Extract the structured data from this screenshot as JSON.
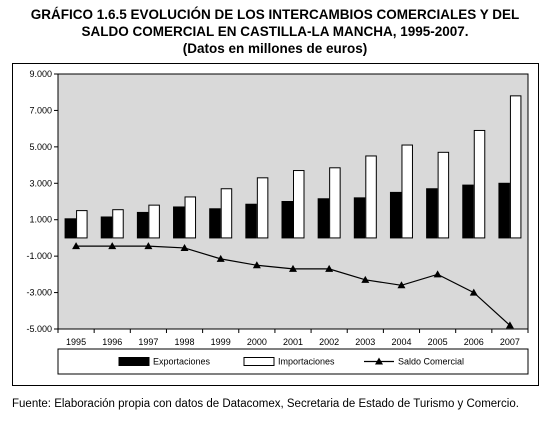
{
  "title": {
    "line1": "GRÁFICO 1.6.5 EVOLUCIÓN DE LOS INTERCAMBIOS COMERCIALES Y DEL",
    "line2": "SALDO COMERCIAL EN CASTILLA-LA MANCHA, 1995-2007.",
    "line3": "(Datos en millones de euros)"
  },
  "source": "Fuente: Elaboración propia con datos de Datacomex, Secretaria de Estado de Turismo y Comercio.",
  "chart_data": {
    "type": "bar",
    "categories": [
      "1995",
      "1996",
      "1997",
      "1998",
      "1999",
      "2000",
      "2001",
      "2002",
      "2003",
      "2004",
      "2005",
      "2006",
      "2007"
    ],
    "series": [
      {
        "name": "Exportaciones",
        "type": "bar",
        "color": "#000000",
        "values": [
          1050,
          1150,
          1400,
          1700,
          1600,
          1850,
          2000,
          2150,
          2200,
          2500,
          2700,
          2900,
          3000
        ]
      },
      {
        "name": "Importaciones",
        "type": "bar",
        "color": "#ffffff",
        "values": [
          1500,
          1550,
          1800,
          2250,
          2700,
          3300,
          3700,
          3850,
          4500,
          5100,
          4700,
          5900,
          7800
        ]
      },
      {
        "name": "Saldo Comercial",
        "type": "line",
        "marker": "triangle",
        "color": "#000000",
        "values": [
          -450,
          -450,
          -450,
          -550,
          -1150,
          -1500,
          -1700,
          -1700,
          -2300,
          -2600,
          -2000,
          -3000,
          -4800
        ]
      }
    ],
    "yticks": [
      "9.000",
      "7.000",
      "5.000",
      "3.000",
      "1.000",
      "-1.000",
      "-3.000",
      "-5.000"
    ],
    "ylim": [
      -5000,
      9000
    ],
    "plot_background": "#d9d9d9",
    "grid": false,
    "legend_position": "bottom"
  }
}
